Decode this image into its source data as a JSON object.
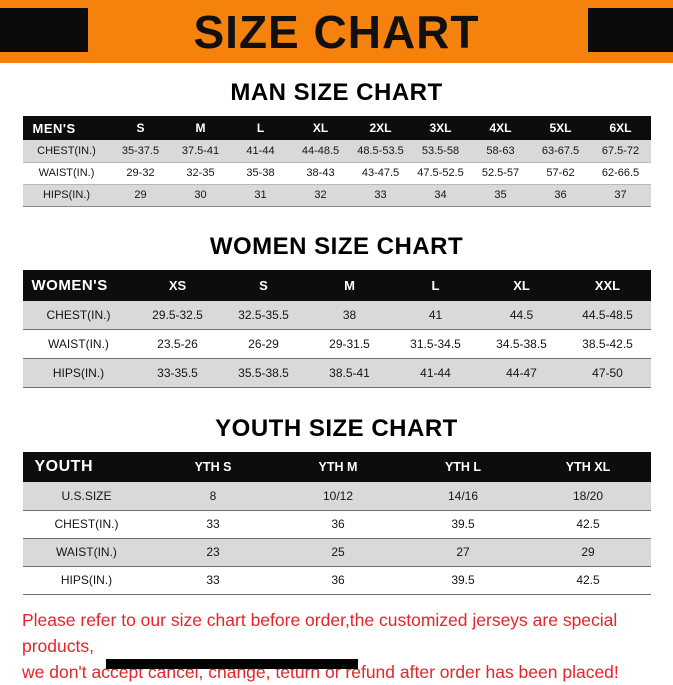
{
  "banner": {
    "title": "SIZE CHART",
    "background_color": "#F4820D",
    "bar_color": "#0B0B0B"
  },
  "sections": {
    "men": {
      "heading": "MAN SIZE CHART",
      "table": {
        "header": [
          "MEN'S",
          "S",
          "M",
          "L",
          "XL",
          "2XL",
          "3XL",
          "4XL",
          "5XL",
          "6XL"
        ],
        "rows": [
          [
            "CHEST(IN.)",
            "35-37.5",
            "37.5-41",
            "41-44",
            "44-48.5",
            "48.5-53.5",
            "53.5-58",
            "58-63",
            "63-67.5",
            "67.5-72"
          ],
          [
            "WAIST(IN.)",
            "29-32",
            "32-35",
            "35-38",
            "38-43",
            "43-47.5",
            "47.5-52.5",
            "52.5-57",
            "57-62",
            "62-66.5"
          ],
          [
            "HIPS(IN.)",
            "29",
            "30",
            "31",
            "32",
            "33",
            "34",
            "35",
            "36",
            "37"
          ]
        ]
      }
    },
    "women": {
      "heading": "WOMEN SIZE CHART",
      "table": {
        "header": [
          "WOMEN'S",
          "XS",
          "S",
          "M",
          "L",
          "XL",
          "XXL"
        ],
        "rows": [
          [
            "CHEST(IN.)",
            "29.5-32.5",
            "32.5-35.5",
            "38",
            "41",
            "44.5",
            "44.5-48.5"
          ],
          [
            "WAIST(IN.)",
            "23.5-26",
            "26-29",
            "29-31.5",
            "31.5-34.5",
            "34.5-38.5",
            "38.5-42.5"
          ],
          [
            "HIPS(IN.)",
            "33-35.5",
            "35.5-38.5",
            "38.5-41",
            "41-44",
            "44-47",
            "47-50"
          ]
        ]
      }
    },
    "youth": {
      "heading": "YOUTH SIZE CHART",
      "table": {
        "header": [
          "YOUTH",
          "YTH S",
          "YTH M",
          "YTH L",
          "YTH XL"
        ],
        "rows": [
          [
            "U.S.SIZE",
            "8",
            "10/12",
            "14/16",
            "18/20"
          ],
          [
            "CHEST(IN.)",
            "33",
            "36",
            "39.5",
            "42.5"
          ],
          [
            "WAIST(IN.)",
            "23",
            "25",
            "27",
            "29"
          ],
          [
            "HIPS(IN.)",
            "33",
            "36",
            "39.5",
            "42.5"
          ]
        ]
      }
    }
  },
  "footer": {
    "lines": [
      "Please refer to our size chart before order,the customized jerseys are special products,",
      "we don't accept cancel, change, teturn or refund after order has been placed!"
    ],
    "text_color": "#E8232A"
  }
}
